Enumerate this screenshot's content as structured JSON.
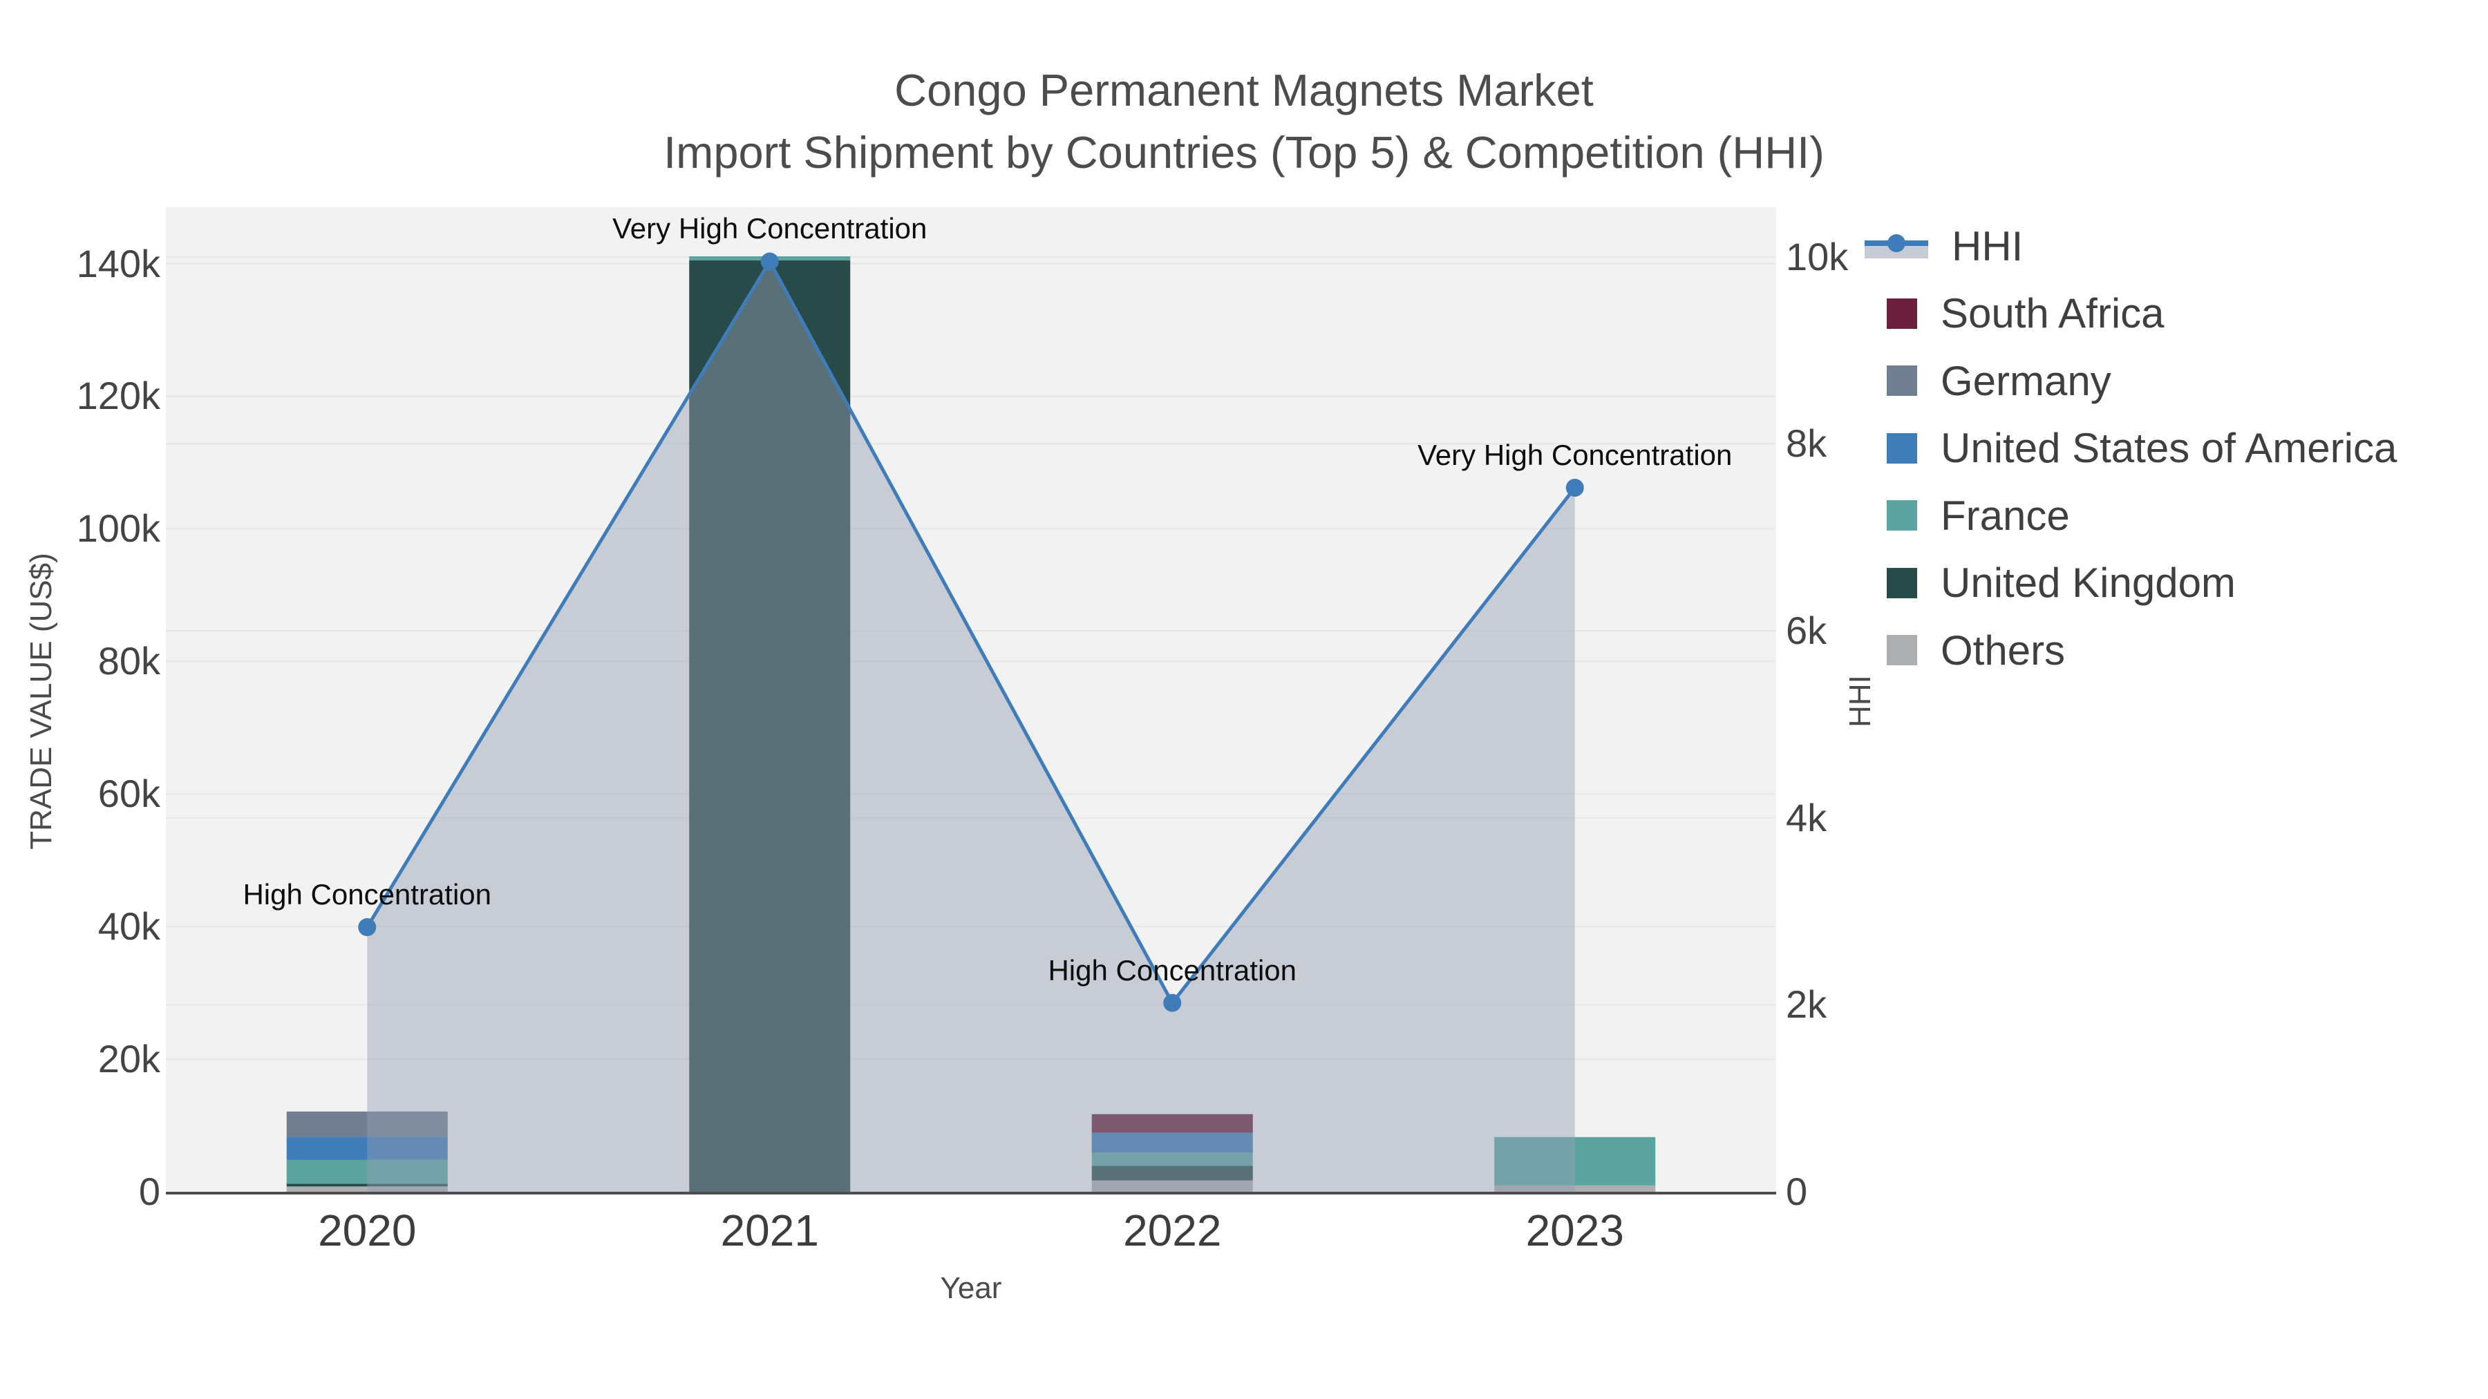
{
  "title": {
    "line1": "Congo Permanent Magnets Market",
    "line2": "Import Shipment by Countries (Top 5) & Competition (HHI)"
  },
  "x_axis": {
    "title": "Year"
  },
  "y_axis_left": {
    "title": "TRADE VALUE (US$)"
  },
  "y_axis_right": {
    "title": "HHI"
  },
  "legend": {
    "items": [
      {
        "label": "HHI",
        "type": "line",
        "color": "#3f7cba",
        "band_color": "#c6cbd4"
      },
      {
        "label": "South Africa",
        "type": "square",
        "color": "#6b1f3d"
      },
      {
        "label": "Germany",
        "type": "square",
        "color": "#727f92"
      },
      {
        "label": "United States of America",
        "type": "square",
        "color": "#3f7db9"
      },
      {
        "label": "France",
        "type": "square",
        "color": "#5ca4a0"
      },
      {
        "label": "United Kingdom",
        "type": "square",
        "color": "#284b49"
      },
      {
        "label": "Others",
        "type": "square",
        "color": "#acaeb0"
      }
    ]
  },
  "chart_data": {
    "type": "bar+line",
    "categories": [
      "2020",
      "2021",
      "2022",
      "2023"
    ],
    "bar_stack_bottom_to_top": [
      {
        "name": "Others",
        "color": "#acaeb0",
        "values": [
          800,
          0,
          1700,
          950
        ]
      },
      {
        "name": "United Kingdom",
        "color": "#284b49",
        "values": [
          400,
          140500,
          2200,
          0
        ]
      },
      {
        "name": "France",
        "color": "#5ca4a0",
        "values": [
          3600,
          600,
          2000,
          7300
        ]
      },
      {
        "name": "United States of America",
        "color": "#3f7db9",
        "values": [
          3500,
          0,
          3000,
          0
        ]
      },
      {
        "name": "Germany",
        "color": "#727f92",
        "values": [
          3800,
          0,
          0,
          0
        ]
      },
      {
        "name": "South Africa",
        "color": "#6b1f3d",
        "values": [
          0,
          0,
          2800,
          0
        ]
      }
    ],
    "line_series": {
      "name": "HHI",
      "color": "#3f7cba",
      "area_fill": "rgba(148,158,178,0.45)",
      "values": [
        2830,
        9950,
        2020,
        7530
      ]
    },
    "annotations": [
      {
        "category": "2020",
        "text": "High Concentration"
      },
      {
        "category": "2021",
        "text": "Very High Concentration"
      },
      {
        "category": "2022",
        "text": "High Concentration"
      },
      {
        "category": "2023",
        "text": "Very High Concentration"
      }
    ],
    "left_axis": {
      "label": "TRADE VALUE (US$)",
      "tick_labels": [
        "0",
        "20k",
        "40k",
        "60k",
        "80k",
        "100k",
        "120k",
        "140k"
      ],
      "tick_values": [
        0,
        20000,
        40000,
        60000,
        80000,
        100000,
        120000,
        140000
      ],
      "range": [
        0,
        148500
      ],
      "grid": true
    },
    "right_axis": {
      "label": "HHI",
      "tick_labels": [
        "0",
        "2k",
        "4k",
        "6k",
        "8k",
        "10k"
      ],
      "tick_values": [
        0,
        2000,
        4000,
        6000,
        8000,
        10000
      ],
      "range": [
        0,
        10530
      ],
      "grid": true
    },
    "plot_bg": "#f2f2f2",
    "grid_color": "#e7e7e7",
    "axis_line_color": "#4d4d4d"
  }
}
